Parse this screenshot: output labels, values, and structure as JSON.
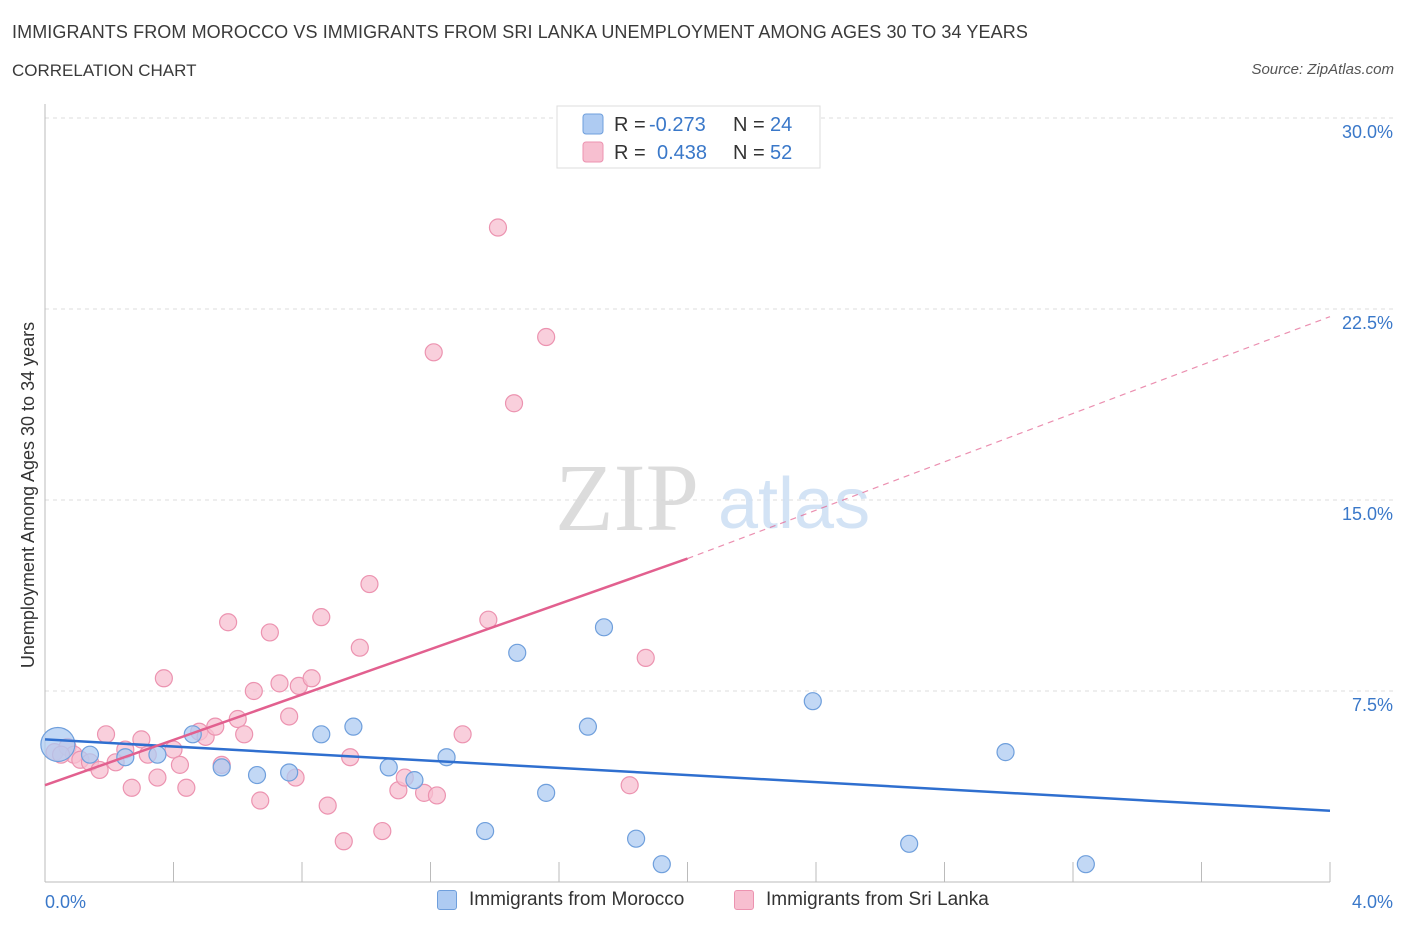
{
  "header": {
    "title": "IMMIGRANTS FROM MOROCCO VS IMMIGRANTS FROM SRI LANKA UNEMPLOYMENT AMONG AGES 30 TO 34 YEARS",
    "subtitle": "CORRELATION CHART",
    "source": "Source: ZipAtlas.com"
  },
  "watermark": {
    "zip": "ZIP",
    "atlas": "atlas"
  },
  "colors": {
    "morocco_fill": "#aecbf2",
    "morocco_stroke": "#6f9fdc",
    "morocco_line": "#2f6fcf",
    "srilanka_fill": "#f7bfd0",
    "srilanka_stroke": "#ec93b0",
    "srilanka_line": "#e2608f",
    "tick_text": "#3a78c9",
    "grid": "#dddddd"
  },
  "stats_legend": {
    "rows": [
      {
        "r_label": "R =",
        "r_value": "-0.273",
        "n_label": "N =",
        "n_value": "24"
      },
      {
        "r_label": "R =",
        "r_value": "0.438",
        "n_label": "N =",
        "n_value": "52"
      }
    ]
  },
  "bottom_legend": {
    "morocco": "Immigrants from Morocco",
    "srilanka": "Immigrants from Sri Lanka"
  },
  "chart_data": {
    "type": "scatter",
    "title": "IMMIGRANTS FROM MOROCCO VS IMMIGRANTS FROM SRI LANKA UNEMPLOYMENT AMONG AGES 30 TO 34 YEARS",
    "ylabel": "Unemployment Among Ages 30 to 34 years",
    "xlim": [
      0.0,
      4.0
    ],
    "ylim": [
      0.0,
      30.0
    ],
    "x_tick_labels": [
      "0.0%",
      "4.0%"
    ],
    "y_ticks": [
      7.5,
      15.0,
      22.5,
      30.0
    ],
    "y_tick_labels": [
      "7.5%",
      "15.0%",
      "22.5%",
      "30.0%"
    ],
    "grid": true,
    "series": [
      {
        "name": "Immigrants from Morocco",
        "r": -0.273,
        "n": 24,
        "trend": {
          "x": [
            0.0,
            4.0
          ],
          "y": [
            5.6,
            2.8
          ]
        },
        "points": [
          {
            "x": 0.04,
            "y": 5.4,
            "big": true
          },
          {
            "x": 0.14,
            "y": 5.0
          },
          {
            "x": 0.25,
            "y": 4.9
          },
          {
            "x": 0.35,
            "y": 5.0
          },
          {
            "x": 0.46,
            "y": 5.8
          },
          {
            "x": 0.55,
            "y": 4.5
          },
          {
            "x": 0.66,
            "y": 4.2
          },
          {
            "x": 0.76,
            "y": 4.3
          },
          {
            "x": 0.86,
            "y": 5.8
          },
          {
            "x": 0.96,
            "y": 6.1
          },
          {
            "x": 1.07,
            "y": 4.5
          },
          {
            "x": 1.15,
            "y": 4.0
          },
          {
            "x": 1.25,
            "y": 4.9
          },
          {
            "x": 1.37,
            "y": 2.0
          },
          {
            "x": 1.47,
            "y": 9.0
          },
          {
            "x": 1.56,
            "y": 3.5
          },
          {
            "x": 1.69,
            "y": 6.1
          },
          {
            "x": 1.74,
            "y": 10.0
          },
          {
            "x": 1.84,
            "y": 1.7
          },
          {
            "x": 1.92,
            "y": 0.7
          },
          {
            "x": 2.39,
            "y": 7.1
          },
          {
            "x": 2.69,
            "y": 1.5
          },
          {
            "x": 2.99,
            "y": 5.1
          },
          {
            "x": 3.24,
            "y": 0.7
          }
        ]
      },
      {
        "name": "Immigrants from Sri Lanka",
        "r": 0.438,
        "n": 52,
        "trend": {
          "x": [
            0.0,
            2.0
          ],
          "y": [
            3.8,
            12.7
          ]
        },
        "trend_extension": {
          "x": [
            2.0,
            4.0
          ],
          "y": [
            12.7,
            22.2
          ]
        },
        "points": [
          {
            "x": 0.03,
            "y": 5.1
          },
          {
            "x": 0.07,
            "y": 5.3
          },
          {
            "x": 0.09,
            "y": 5.0
          },
          {
            "x": 0.11,
            "y": 4.8
          },
          {
            "x": 0.14,
            "y": 4.7
          },
          {
            "x": 0.17,
            "y": 4.4
          },
          {
            "x": 0.19,
            "y": 5.8
          },
          {
            "x": 0.22,
            "y": 4.7
          },
          {
            "x": 0.25,
            "y": 5.2
          },
          {
            "x": 0.27,
            "y": 3.7
          },
          {
            "x": 0.3,
            "y": 5.6
          },
          {
            "x": 0.32,
            "y": 5.0
          },
          {
            "x": 0.35,
            "y": 4.1
          },
          {
            "x": 0.37,
            "y": 8.0
          },
          {
            "x": 0.4,
            "y": 5.2
          },
          {
            "x": 0.42,
            "y": 4.6
          },
          {
            "x": 0.44,
            "y": 3.7
          },
          {
            "x": 0.48,
            "y": 5.9
          },
          {
            "x": 0.5,
            "y": 5.7
          },
          {
            "x": 0.53,
            "y": 6.1
          },
          {
            "x": 0.55,
            "y": 4.6
          },
          {
            "x": 0.57,
            "y": 10.2
          },
          {
            "x": 0.6,
            "y": 6.4
          },
          {
            "x": 0.62,
            "y": 5.8
          },
          {
            "x": 0.65,
            "y": 7.5
          },
          {
            "x": 0.67,
            "y": 3.2
          },
          {
            "x": 0.7,
            "y": 9.8
          },
          {
            "x": 0.73,
            "y": 7.8
          },
          {
            "x": 0.76,
            "y": 6.5
          },
          {
            "x": 0.78,
            "y": 4.1
          },
          {
            "x": 0.79,
            "y": 7.7
          },
          {
            "x": 0.83,
            "y": 8.0
          },
          {
            "x": 0.86,
            "y": 10.4
          },
          {
            "x": 0.88,
            "y": 3.0
          },
          {
            "x": 0.93,
            "y": 1.6
          },
          {
            "x": 0.95,
            "y": 4.9
          },
          {
            "x": 0.98,
            "y": 9.2
          },
          {
            "x": 1.01,
            "y": 11.7
          },
          {
            "x": 1.05,
            "y": 2.0
          },
          {
            "x": 1.1,
            "y": 3.6
          },
          {
            "x": 1.12,
            "y": 4.1
          },
          {
            "x": 1.18,
            "y": 3.5
          },
          {
            "x": 1.21,
            "y": 20.8
          },
          {
            "x": 1.22,
            "y": 3.4
          },
          {
            "x": 1.3,
            "y": 5.8
          },
          {
            "x": 1.38,
            "y": 10.3
          },
          {
            "x": 1.41,
            "y": 25.7
          },
          {
            "x": 1.46,
            "y": 18.8
          },
          {
            "x": 1.56,
            "y": 21.4
          },
          {
            "x": 1.82,
            "y": 3.8
          },
          {
            "x": 1.87,
            "y": 8.8
          },
          {
            "x": 0.05,
            "y": 5.0
          }
        ]
      }
    ]
  }
}
